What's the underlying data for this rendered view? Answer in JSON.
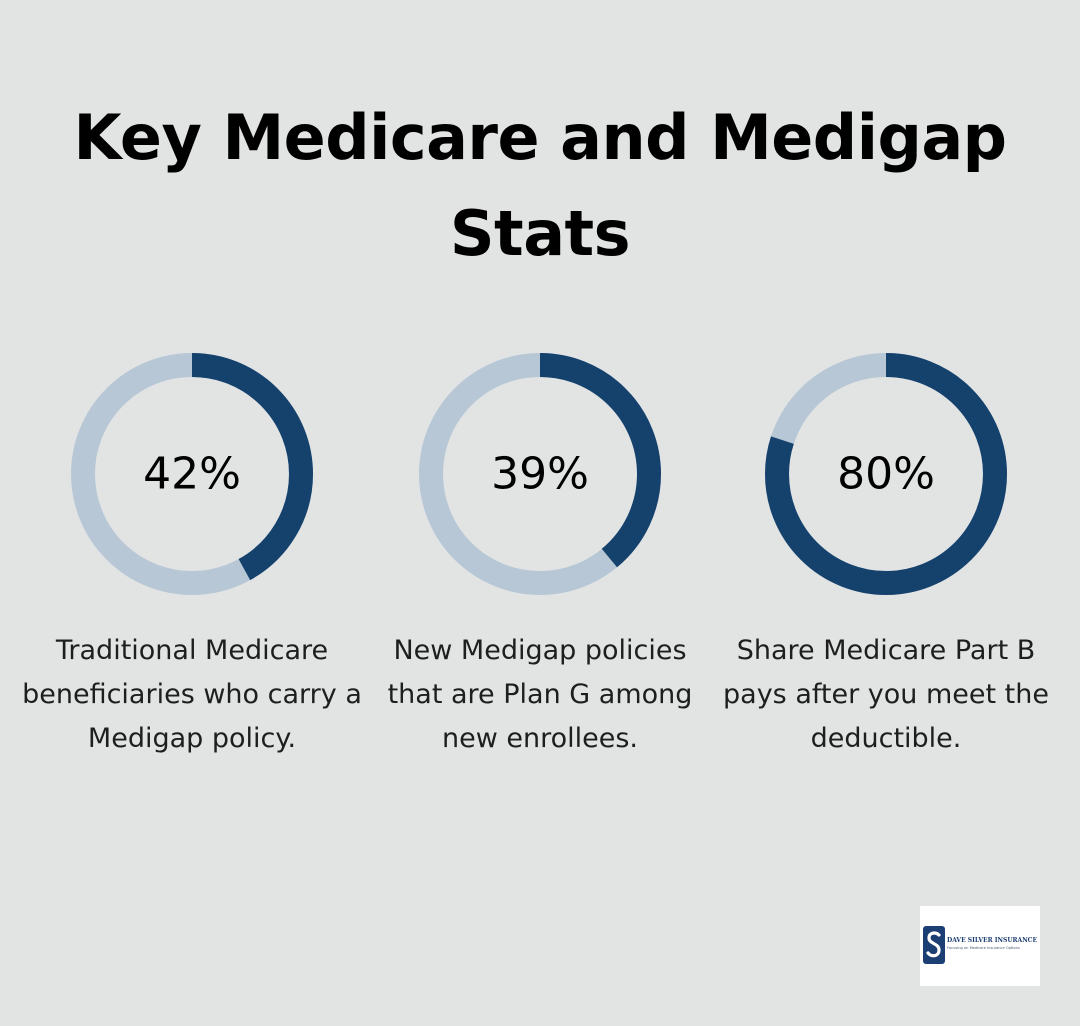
{
  "title": "Key Medicare and Medigap Stats",
  "colors": {
    "background": "#e2e4e4",
    "ring_filled": "#15416d",
    "ring_track": "#b7c7d6",
    "logo_blue": "#1c3f73"
  },
  "chart_data": [
    {
      "type": "pie",
      "value": 42,
      "label": "42%",
      "caption": "Traditional Medicare beneficiaries who carry a Medigap policy.",
      "range": [
        0,
        100
      ]
    },
    {
      "type": "pie",
      "value": 39,
      "label": "39%",
      "caption": "New Medigap policies that are Plan G among new enrollees.",
      "range": [
        0,
        100
      ]
    },
    {
      "type": "pie",
      "value": 80,
      "label": "80%",
      "caption": "Share Medicare Part B pays after you meet the deductible.",
      "range": [
        0,
        100
      ]
    }
  ],
  "logo": {
    "name": "DAVE SILVER INSURANCE",
    "tagline": "Focusing on Medicare Insurance Options",
    "icon": "s-monogram-icon"
  }
}
